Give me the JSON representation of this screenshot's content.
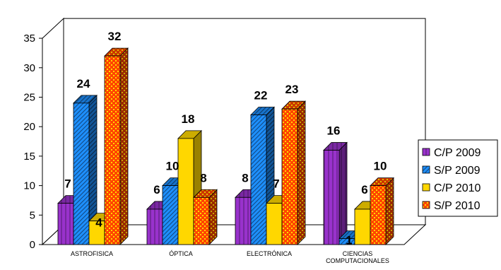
{
  "chart_data": {
    "type": "bar",
    "title": "",
    "xlabel": "",
    "ylabel": "",
    "ylim": [
      0,
      35
    ],
    "yticks": [
      0,
      5,
      10,
      15,
      20,
      25,
      30,
      35
    ],
    "grid": false,
    "legend_position": "right",
    "categories": [
      [
        "ASTROFISICA"
      ],
      [
        "ÓPTICA"
      ],
      [
        "ELECTRÓNICA"
      ],
      [
        "CIENCIAS",
        "COMPUTACIONALES"
      ]
    ],
    "series": [
      {
        "name": "C/P 2009",
        "values": [
          7,
          6,
          8,
          16
        ],
        "color": "#9932cc",
        "pattern": "vertical-stripes"
      },
      {
        "name": "S/P 2009",
        "values": [
          24,
          10,
          22,
          1
        ],
        "color": "#1e90ff",
        "pattern": "diagonal-stripes"
      },
      {
        "name": "C/P 2010",
        "values": [
          4,
          18,
          7,
          6
        ],
        "color": "#ffd700",
        "pattern": "solid"
      },
      {
        "name": "S/P 2010",
        "values": [
          32,
          8,
          23,
          10
        ],
        "color": "#ff4500",
        "pattern": "dots"
      }
    ],
    "colors": {
      "wall_stroke": "#000000",
      "floor_fill": "#ffffff"
    }
  }
}
